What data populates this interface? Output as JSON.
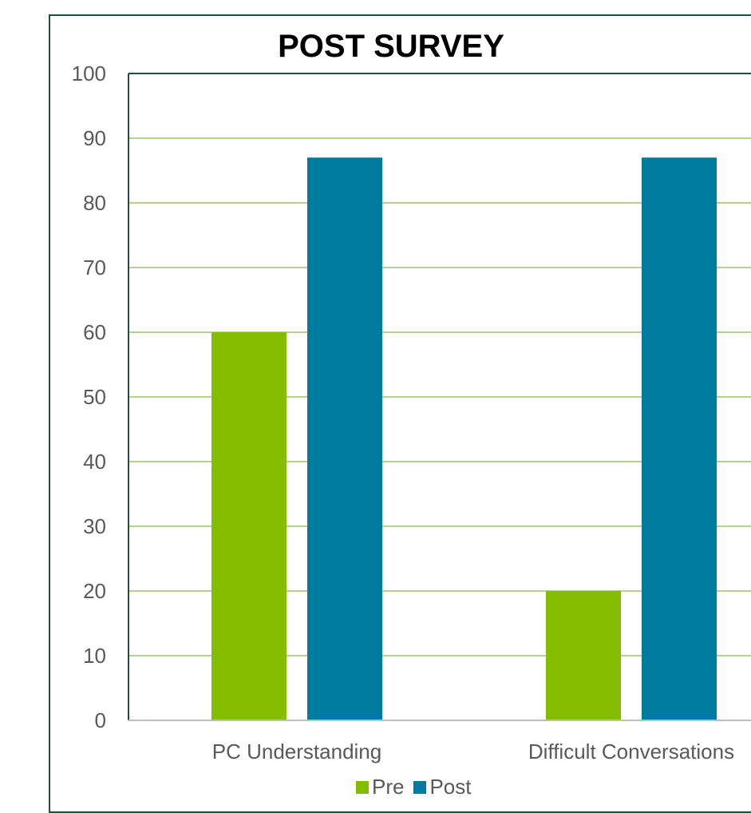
{
  "chart_data": {
    "type": "bar",
    "title": "POST SURVEY",
    "xlabel": "",
    "ylabel": "",
    "categories": [
      "PC Understanding",
      "Difficult Conversations"
    ],
    "series": [
      {
        "name": "Pre",
        "color": "#84bd00",
        "values": [
          60,
          20
        ]
      },
      {
        "name": "Post",
        "color": "#007a9e",
        "values": [
          87,
          87
        ]
      }
    ],
    "ylim": [
      0,
      100
    ],
    "yticks": [
      0,
      10,
      20,
      30,
      40,
      50,
      60,
      70,
      80,
      90,
      100
    ],
    "grid": true,
    "gridColor": "#9bc26b",
    "legend": "bottom"
  }
}
